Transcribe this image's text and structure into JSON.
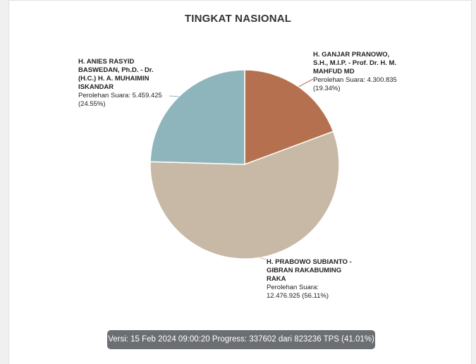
{
  "chart_data": {
    "type": "pie",
    "title": "TINGKAT NASIONAL",
    "slices": [
      {
        "name": "H. GANJAR PRANOWO, S.H., M.I.P. - Prof. Dr. H. M. MAHFUD MD",
        "votes_label": "Perolehan Suara: 4.300.835",
        "pct_label": "(19.34%)",
        "value": 4300835,
        "percent": 19.34,
        "color": "#b5714f"
      },
      {
        "name": "H. PRABOWO SUBIANTO - GIBRAN RAKABUMING RAKA",
        "votes_label": "Perolehan Suara:",
        "pct_label": "12.476.925 (56.11%)",
        "value": 12476925,
        "percent": 56.11,
        "color": "#c8b8a6"
      },
      {
        "name": "H. ANIES RASYID BASWEDAN, Ph.D. - Dr. (H.C.) H. A. MUHAIMIN ISKANDAR",
        "votes_label": "Perolehan Suara: 5.459.425",
        "pct_label": "(24.55%)",
        "value": 5459425,
        "percent": 24.55,
        "color": "#8db5bb"
      }
    ]
  },
  "footer": {
    "text": "Versi: 15 Feb 2024 09:00:20 Progress: 337602 dari 823236 TPS (41.01%)"
  }
}
